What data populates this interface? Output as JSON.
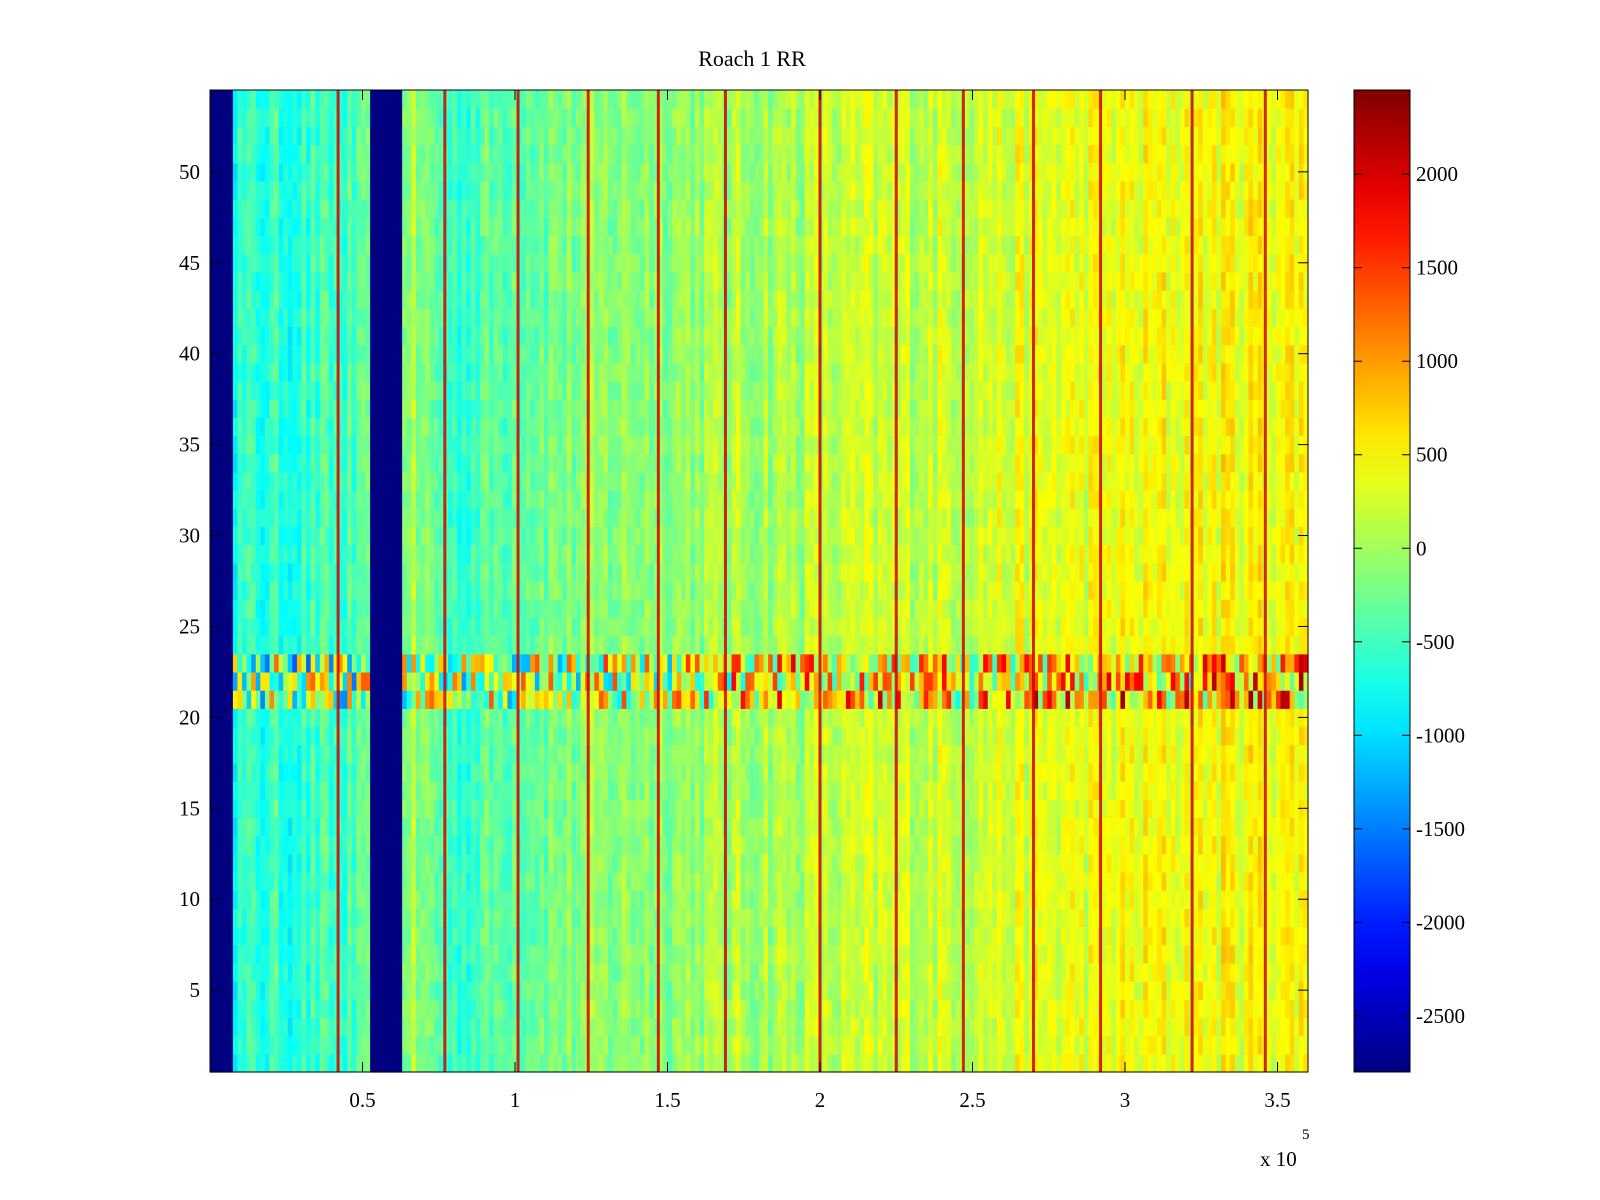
{
  "chart_data": {
    "type": "heatmap",
    "title": "Roach 1 RR",
    "xlabel": "",
    "ylabel": "",
    "x_multiplier_label": "x 10",
    "x_multiplier_exponent": "5",
    "xlim": [
      0,
      3.6
    ],
    "ylim": [
      0.5,
      54.5
    ],
    "x_ticks": [
      0.5,
      1,
      1.5,
      2,
      2.5,
      3,
      3.5
    ],
    "x_tick_labels": [
      "0.5",
      "1",
      "1.5",
      "2",
      "2.5",
      "3",
      "3.5"
    ],
    "y_ticks": [
      5,
      10,
      15,
      20,
      25,
      30,
      35,
      40,
      45,
      50
    ],
    "y_tick_labels": [
      "5",
      "10",
      "15",
      "20",
      "25",
      "30",
      "35",
      "40",
      "45",
      "50"
    ],
    "colorbar": {
      "colormap": "jet",
      "clim": [
        -2800,
        2450
      ],
      "ticks": [
        -2500,
        -2000,
        -1500,
        -1000,
        -500,
        0,
        500,
        1000,
        1500,
        2000
      ],
      "tick_labels": [
        "-2500",
        "-2000",
        "-1500",
        "-1000",
        "-500",
        "0",
        "500",
        "1000",
        "1500",
        "2000"
      ]
    },
    "approx_structure": {
      "rows": 54,
      "column_mean_trend": [
        {
          "x": 0.08,
          "value": -650
        },
        {
          "x": 0.5,
          "value": -500
        },
        {
          "x": 0.65,
          "value": 0
        },
        {
          "x": 0.8,
          "value": -550
        },
        {
          "x": 1.0,
          "value": -250
        },
        {
          "x": 1.5,
          "value": -50
        },
        {
          "x": 2.0,
          "value": 100
        },
        {
          "x": 2.5,
          "value": 250
        },
        {
          "x": 3.0,
          "value": 400
        },
        {
          "x": 3.6,
          "value": 500
        }
      ],
      "saturated_low_bands": [
        [
          0,
          0.08
        ],
        [
          0.52,
          0.63
        ]
      ],
      "high_vertical_lines_x": [
        0.42,
        0.77,
        1.01,
        1.24,
        1.47,
        1.69,
        2.0,
        2.25,
        2.47,
        2.7,
        2.92,
        3.22,
        3.46
      ],
      "anomalous_rows": [
        21,
        22,
        23
      ]
    }
  }
}
